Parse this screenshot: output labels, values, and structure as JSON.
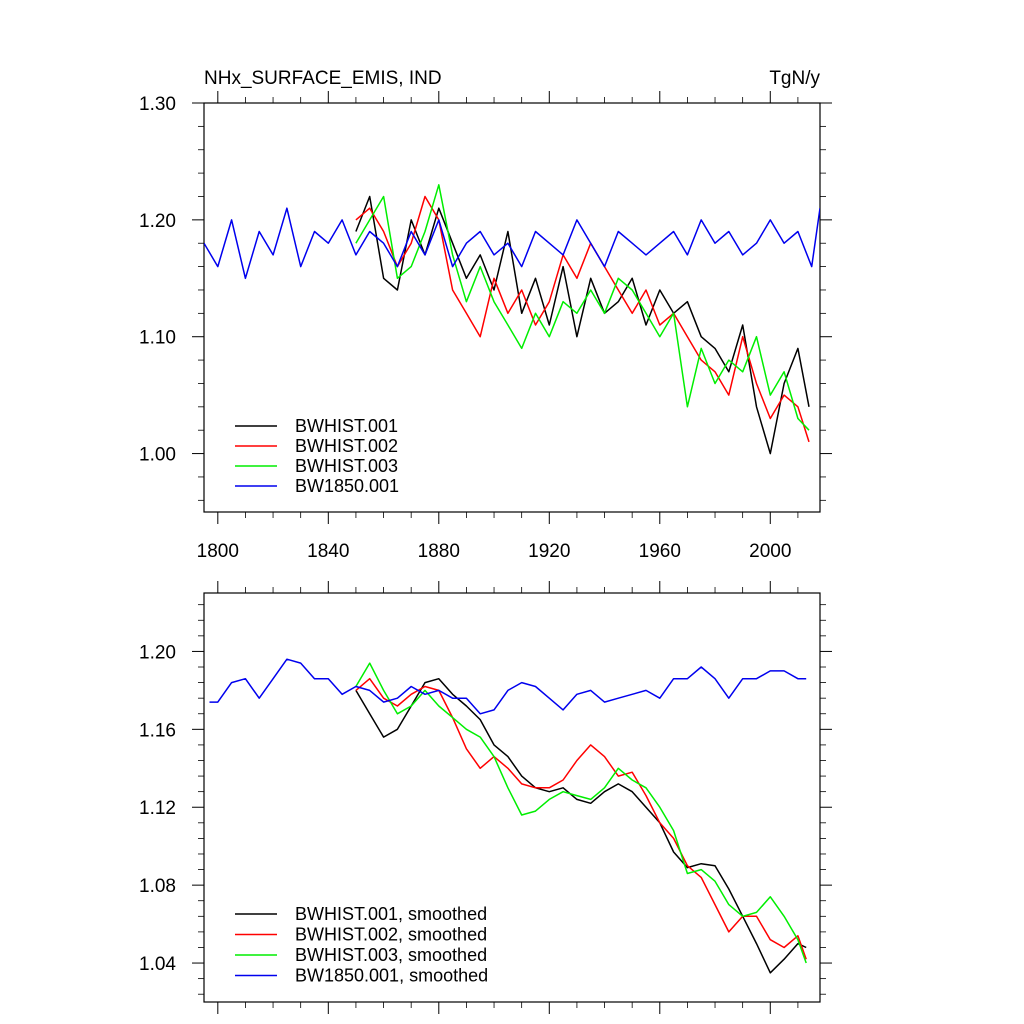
{
  "chart_data": [
    {
      "type": "line",
      "title_left": "NHx_SURFACE_EMIS, IND",
      "title_right": "TgN/y",
      "xlim": [
        1795,
        2018
      ],
      "ylim": [
        0.95,
        1.3
      ],
      "x_ticks": [
        1800,
        1840,
        1880,
        1920,
        1960,
        2000
      ],
      "x_tick_labels": [
        "1800",
        "1840",
        "1880",
        "1920",
        "1960",
        "2000"
      ],
      "y_ticks": [
        1.0,
        1.1,
        1.2,
        1.3
      ],
      "y_tick_labels": [
        "1.00",
        "1.10",
        "1.20",
        "1.30"
      ],
      "legend_position": "bottom-left",
      "series": [
        {
          "name": "BWHIST.001",
          "color": "#000000",
          "x": [
            1850,
            1855,
            1860,
            1865,
            1870,
            1875,
            1880,
            1885,
            1890,
            1895,
            1900,
            1905,
            1910,
            1915,
            1920,
            1925,
            1930,
            1935,
            1940,
            1945,
            1950,
            1955,
            1960,
            1965,
            1970,
            1975,
            1980,
            1985,
            1990,
            1995,
            2000,
            2005,
            2010,
            2014
          ],
          "y": [
            1.19,
            1.22,
            1.15,
            1.14,
            1.2,
            1.17,
            1.21,
            1.18,
            1.15,
            1.17,
            1.14,
            1.19,
            1.12,
            1.15,
            1.11,
            1.16,
            1.1,
            1.15,
            1.12,
            1.13,
            1.15,
            1.11,
            1.14,
            1.12,
            1.13,
            1.1,
            1.09,
            1.07,
            1.11,
            1.04,
            1.0,
            1.06,
            1.09,
            1.04
          ]
        },
        {
          "name": "BWHIST.002",
          "color": "#ff0000",
          "x": [
            1850,
            1855,
            1860,
            1865,
            1870,
            1875,
            1880,
            1885,
            1890,
            1895,
            1900,
            1905,
            1910,
            1915,
            1920,
            1925,
            1930,
            1935,
            1940,
            1945,
            1950,
            1955,
            1960,
            1965,
            1970,
            1975,
            1980,
            1985,
            1990,
            1995,
            2000,
            2005,
            2010,
            2014
          ],
          "y": [
            1.2,
            1.21,
            1.19,
            1.16,
            1.18,
            1.22,
            1.2,
            1.14,
            1.12,
            1.1,
            1.15,
            1.12,
            1.14,
            1.11,
            1.13,
            1.17,
            1.15,
            1.18,
            1.16,
            1.14,
            1.12,
            1.14,
            1.11,
            1.12,
            1.1,
            1.08,
            1.07,
            1.05,
            1.1,
            1.06,
            1.03,
            1.05,
            1.04,
            1.01
          ]
        },
        {
          "name": "BWHIST.003",
          "color": "#00ee00",
          "x": [
            1850,
            1855,
            1860,
            1865,
            1870,
            1875,
            1880,
            1885,
            1890,
            1895,
            1900,
            1905,
            1910,
            1915,
            1920,
            1925,
            1930,
            1935,
            1940,
            1945,
            1950,
            1955,
            1960,
            1965,
            1970,
            1975,
            1980,
            1985,
            1990,
            1995,
            2000,
            2005,
            2010,
            2014
          ],
          "y": [
            1.18,
            1.2,
            1.22,
            1.15,
            1.16,
            1.19,
            1.23,
            1.17,
            1.13,
            1.16,
            1.13,
            1.11,
            1.09,
            1.12,
            1.1,
            1.13,
            1.12,
            1.14,
            1.12,
            1.15,
            1.14,
            1.12,
            1.1,
            1.12,
            1.04,
            1.09,
            1.06,
            1.08,
            1.07,
            1.1,
            1.05,
            1.07,
            1.03,
            1.02
          ]
        },
        {
          "name": "BW1850.001",
          "color": "#0000ee",
          "x": [
            1795,
            1800,
            1805,
            1810,
            1815,
            1820,
            1825,
            1830,
            1835,
            1840,
            1845,
            1850,
            1855,
            1860,
            1865,
            1870,
            1875,
            1880,
            1885,
            1890,
            1895,
            1900,
            1905,
            1910,
            1915,
            1920,
            1925,
            1930,
            1935,
            1940,
            1945,
            1950,
            1955,
            1960,
            1965,
            1970,
            1975,
            1980,
            1985,
            1990,
            1995,
            2000,
            2005,
            2010,
            2015,
            2018
          ],
          "y": [
            1.18,
            1.16,
            1.2,
            1.15,
            1.19,
            1.17,
            1.21,
            1.16,
            1.19,
            1.18,
            1.2,
            1.17,
            1.19,
            1.18,
            1.16,
            1.19,
            1.17,
            1.2,
            1.16,
            1.18,
            1.19,
            1.17,
            1.18,
            1.16,
            1.19,
            1.18,
            1.17,
            1.2,
            1.18,
            1.16,
            1.19,
            1.18,
            1.17,
            1.18,
            1.19,
            1.17,
            1.2,
            1.18,
            1.19,
            1.17,
            1.18,
            1.2,
            1.18,
            1.19,
            1.16,
            1.21
          ]
        }
      ]
    },
    {
      "type": "line",
      "xlim": [
        1795,
        2018
      ],
      "ylim": [
        1.02,
        1.23
      ],
      "x_ticks": [
        1800,
        1840,
        1880,
        1920,
        1960,
        2000
      ],
      "y_ticks": [
        1.04,
        1.08,
        1.12,
        1.16,
        1.2
      ],
      "y_tick_labels": [
        "1.04",
        "1.08",
        "1.12",
        "1.16",
        "1.20"
      ],
      "legend_position": "bottom-left",
      "series": [
        {
          "name": "BWHIST.001, smoothed",
          "color": "#000000",
          "x": [
            1850,
            1855,
            1860,
            1865,
            1870,
            1875,
            1880,
            1885,
            1890,
            1895,
            1900,
            1905,
            1910,
            1915,
            1920,
            1925,
            1930,
            1935,
            1940,
            1945,
            1950,
            1955,
            1960,
            1965,
            1970,
            1975,
            1980,
            1985,
            1990,
            1995,
            2000,
            2005,
            2010,
            2013
          ],
          "y": [
            1.18,
            1.168,
            1.156,
            1.16,
            1.172,
            1.184,
            1.186,
            1.178,
            1.172,
            1.165,
            1.152,
            1.146,
            1.136,
            1.13,
            1.128,
            1.13,
            1.124,
            1.122,
            1.128,
            1.132,
            1.128,
            1.12,
            1.112,
            1.097,
            1.089,
            1.091,
            1.09,
            1.078,
            1.064,
            1.05,
            1.035,
            1.042,
            1.05,
            1.048
          ]
        },
        {
          "name": "BWHIST.002, smoothed",
          "color": "#ff0000",
          "x": [
            1850,
            1855,
            1860,
            1865,
            1870,
            1875,
            1880,
            1885,
            1890,
            1895,
            1900,
            1905,
            1910,
            1915,
            1920,
            1925,
            1930,
            1935,
            1940,
            1945,
            1950,
            1955,
            1960,
            1965,
            1970,
            1975,
            1980,
            1985,
            1990,
            1995,
            2000,
            2005,
            2010,
            2013
          ],
          "y": [
            1.18,
            1.186,
            1.176,
            1.172,
            1.178,
            1.182,
            1.18,
            1.166,
            1.15,
            1.14,
            1.146,
            1.14,
            1.132,
            1.13,
            1.13,
            1.134,
            1.144,
            1.152,
            1.146,
            1.136,
            1.138,
            1.126,
            1.112,
            1.104,
            1.09,
            1.084,
            1.07,
            1.056,
            1.064,
            1.064,
            1.052,
            1.048,
            1.054,
            1.042
          ]
        },
        {
          "name": "BWHIST.003, smoothed",
          "color": "#00ee00",
          "x": [
            1850,
            1855,
            1860,
            1865,
            1870,
            1875,
            1880,
            1885,
            1890,
            1895,
            1900,
            1905,
            1910,
            1915,
            1920,
            1925,
            1930,
            1935,
            1940,
            1945,
            1950,
            1955,
            1960,
            1965,
            1970,
            1975,
            1980,
            1985,
            1990,
            1995,
            2000,
            2005,
            2010,
            2013
          ],
          "y": [
            1.182,
            1.194,
            1.18,
            1.168,
            1.172,
            1.18,
            1.172,
            1.166,
            1.16,
            1.156,
            1.146,
            1.13,
            1.116,
            1.118,
            1.124,
            1.128,
            1.126,
            1.124,
            1.13,
            1.14,
            1.134,
            1.13,
            1.12,
            1.108,
            1.086,
            1.088,
            1.082,
            1.07,
            1.064,
            1.066,
            1.074,
            1.064,
            1.052,
            1.04
          ]
        },
        {
          "name": "BW1850.001, smoothed",
          "color": "#0000ee",
          "x": [
            1797,
            1800,
            1805,
            1810,
            1815,
            1820,
            1825,
            1830,
            1835,
            1840,
            1845,
            1850,
            1855,
            1860,
            1865,
            1870,
            1875,
            1880,
            1885,
            1890,
            1895,
            1900,
            1905,
            1910,
            1915,
            1920,
            1925,
            1930,
            1935,
            1940,
            1945,
            1950,
            1955,
            1960,
            1965,
            1970,
            1975,
            1980,
            1985,
            1990,
            1995,
            2000,
            2005,
            2010,
            2013
          ],
          "y": [
            1.174,
            1.174,
            1.184,
            1.186,
            1.176,
            1.186,
            1.196,
            1.194,
            1.186,
            1.186,
            1.178,
            1.182,
            1.18,
            1.174,
            1.176,
            1.182,
            1.178,
            1.18,
            1.176,
            1.176,
            1.168,
            1.17,
            1.18,
            1.184,
            1.182,
            1.176,
            1.17,
            1.178,
            1.18,
            1.174,
            1.176,
            1.178,
            1.18,
            1.176,
            1.186,
            1.186,
            1.192,
            1.186,
            1.176,
            1.186,
            1.186,
            1.19,
            1.19,
            1.186,
            1.186
          ]
        }
      ]
    }
  ]
}
